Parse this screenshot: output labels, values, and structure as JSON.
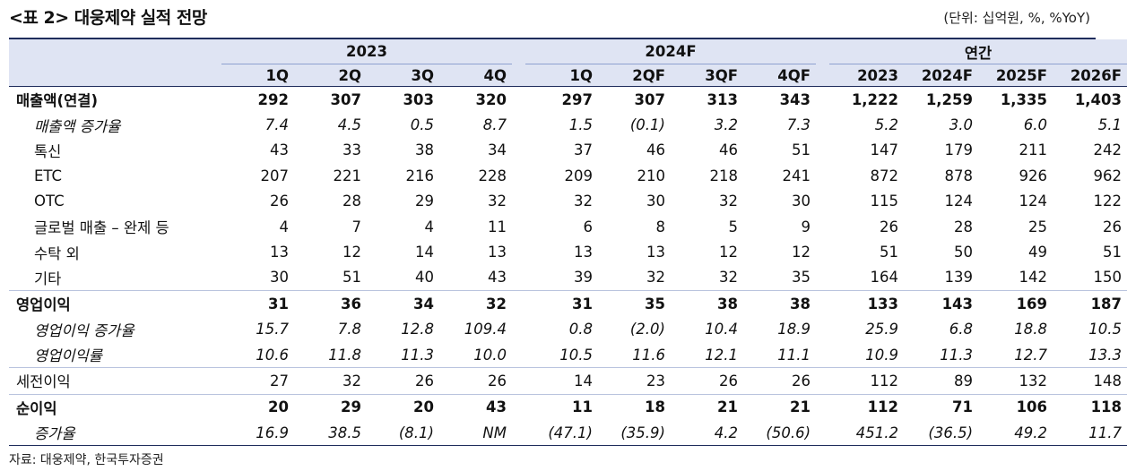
{
  "title": "<표 2> 대웅제약 실적 전망",
  "unit": "(단위: 십억원, %, %YoY)",
  "groups": [
    "2023",
    "2024F",
    "연간"
  ],
  "columns": [
    "1Q",
    "2Q",
    "3Q",
    "4Q",
    "1Q",
    "2QF",
    "3QF",
    "4QF",
    "2023",
    "2024F",
    "2025F",
    "2026F"
  ],
  "rows": [
    {
      "label": "매출액(연결)",
      "style": "bold",
      "values": [
        "292",
        "307",
        "303",
        "320",
        "297",
        "307",
        "313",
        "343",
        "1,222",
        "1,259",
        "1,335",
        "1,403"
      ]
    },
    {
      "label": "매출액 증가율",
      "style": "ital",
      "values": [
        "7.4",
        "4.5",
        "0.5",
        "8.7",
        "1.5",
        "(0.1)",
        "3.2",
        "7.3",
        "5.2",
        "3.0",
        "6.0",
        "5.1"
      ]
    },
    {
      "label": "톡신",
      "style": "sub",
      "values": [
        "43",
        "33",
        "38",
        "34",
        "37",
        "46",
        "46",
        "51",
        "147",
        "179",
        "211",
        "242"
      ]
    },
    {
      "label": "ETC",
      "style": "sub",
      "values": [
        "207",
        "221",
        "216",
        "228",
        "209",
        "210",
        "218",
        "241",
        "872",
        "878",
        "926",
        "962"
      ]
    },
    {
      "label": "OTC",
      "style": "sub",
      "values": [
        "26",
        "28",
        "29",
        "32",
        "32",
        "30",
        "32",
        "30",
        "115",
        "124",
        "124",
        "122"
      ]
    },
    {
      "label": "글로벌 매출 – 완제 등",
      "style": "sub",
      "values": [
        "4",
        "7",
        "4",
        "11",
        "6",
        "8",
        "5",
        "9",
        "26",
        "28",
        "25",
        "26"
      ]
    },
    {
      "label": "수탁 외",
      "style": "sub",
      "values": [
        "13",
        "12",
        "14",
        "13",
        "13",
        "13",
        "12",
        "12",
        "51",
        "50",
        "49",
        "51"
      ]
    },
    {
      "label": "기타",
      "style": "sub",
      "values": [
        "30",
        "51",
        "40",
        "43",
        "39",
        "32",
        "32",
        "35",
        "164",
        "139",
        "142",
        "150"
      ]
    },
    {
      "label": "영업이익",
      "style": "bold",
      "values": [
        "31",
        "36",
        "34",
        "32",
        "31",
        "35",
        "38",
        "38",
        "133",
        "143",
        "169",
        "187"
      ]
    },
    {
      "label": "영업이익 증가율",
      "style": "ital",
      "values": [
        "15.7",
        "7.8",
        "12.8",
        "109.4",
        "0.8",
        "(2.0)",
        "10.4",
        "18.9",
        "25.9",
        "6.8",
        "18.8",
        "10.5"
      ]
    },
    {
      "label": "영업이익률",
      "style": "ital",
      "values": [
        "10.6",
        "11.8",
        "11.3",
        "10.0",
        "10.5",
        "11.6",
        "12.1",
        "11.1",
        "10.9",
        "11.3",
        "12.7",
        "13.3"
      ]
    },
    {
      "label": "세전이익",
      "style": "plain",
      "values": [
        "27",
        "32",
        "26",
        "26",
        "14",
        "23",
        "26",
        "26",
        "112",
        "89",
        "132",
        "148"
      ]
    },
    {
      "label": "순이익",
      "style": "bold",
      "values": [
        "20",
        "29",
        "20",
        "43",
        "11",
        "18",
        "21",
        "21",
        "112",
        "71",
        "106",
        "118"
      ]
    },
    {
      "label": "증가율",
      "style": "ital",
      "values": [
        "16.9",
        "38.5",
        "(8.1)",
        "NM",
        "(47.1)",
        "(35.9)",
        "4.2",
        "(50.6)",
        "451.2",
        "(36.5)",
        "49.2",
        "11.7"
      ]
    }
  ],
  "source": "자료: 대웅제약, 한국투자증권"
}
